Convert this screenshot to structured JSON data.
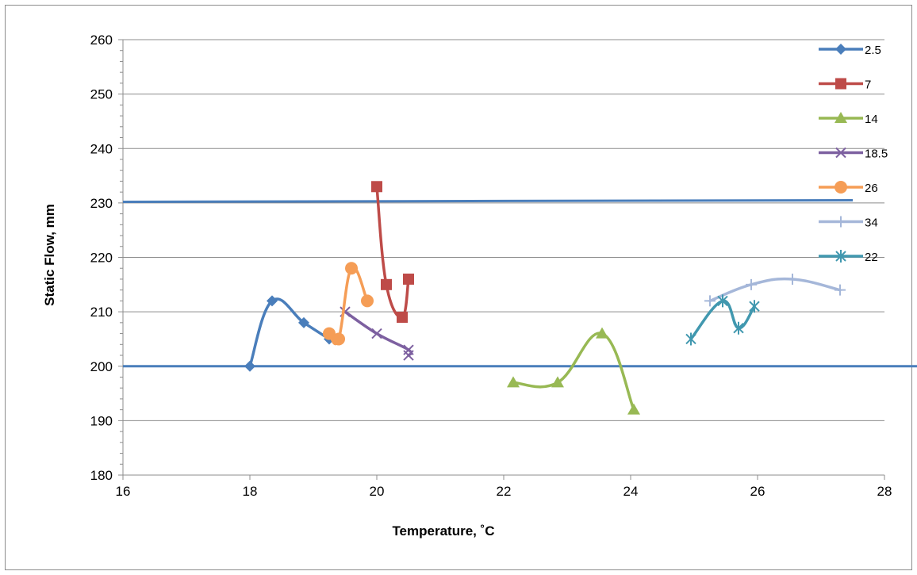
{
  "chart_data": {
    "type": "line",
    "title": "",
    "xlabel": "Temperature, ˚C",
    "ylabel": "Static Flow, mm",
    "xlim": [
      16,
      28
    ],
    "ylim": [
      180,
      260
    ],
    "x_ticks": [
      "16",
      "18",
      "20",
      "22",
      "24",
      "26",
      "28"
    ],
    "y_ticks": [
      "180",
      "190",
      "200",
      "210",
      "220",
      "230",
      "240",
      "250",
      "260"
    ],
    "grid": "horizontal",
    "legend_position": "right",
    "series": [
      {
        "name": "2.5",
        "color": "#4a7ebb",
        "marker": "diamond",
        "points": [
          [
            18.0,
            200
          ],
          [
            18.35,
            212
          ],
          [
            18.85,
            208
          ],
          [
            19.25,
            205
          ]
        ]
      },
      {
        "name": "7",
        "color": "#be4b48",
        "marker": "square",
        "points": [
          [
            20.0,
            233
          ],
          [
            20.15,
            215
          ],
          [
            20.4,
            209
          ],
          [
            20.5,
            216
          ]
        ]
      },
      {
        "name": "14",
        "color": "#98b954",
        "marker": "triangle",
        "points": [
          [
            22.15,
            197
          ],
          [
            22.85,
            197
          ],
          [
            23.55,
            206
          ],
          [
            24.05,
            192
          ]
        ]
      },
      {
        "name": "18.5",
        "color": "#7d60a0",
        "marker": "x",
        "points": [
          [
            19.5,
            210
          ],
          [
            20.0,
            206
          ],
          [
            20.5,
            203
          ],
          [
            20.5,
            202
          ]
        ]
      },
      {
        "name": "26",
        "color": "#f59d56",
        "marker": "circle",
        "points": [
          [
            19.25,
            206
          ],
          [
            19.4,
            205
          ],
          [
            19.6,
            218
          ],
          [
            19.85,
            212
          ]
        ]
      },
      {
        "name": "34",
        "color": "#a5b7d9",
        "marker": "plus",
        "points": [
          [
            25.25,
            212
          ],
          [
            25.9,
            215
          ],
          [
            26.55,
            216
          ],
          [
            27.3,
            214
          ]
        ]
      },
      {
        "name": "22",
        "color": "#4198af",
        "marker": "star",
        "points": [
          [
            24.95,
            205
          ],
          [
            25.45,
            212
          ],
          [
            25.7,
            207
          ],
          [
            25.95,
            211
          ]
        ]
      }
    ],
    "reference_lines": [
      {
        "color": "#4a7ebb",
        "x": [
          16,
          27.5
        ],
        "y": [
          230.2,
          230.5
        ]
      },
      {
        "color": "#4a7ebb",
        "x": [
          16,
          28.75
        ],
        "y": [
          200,
          200
        ]
      }
    ]
  }
}
